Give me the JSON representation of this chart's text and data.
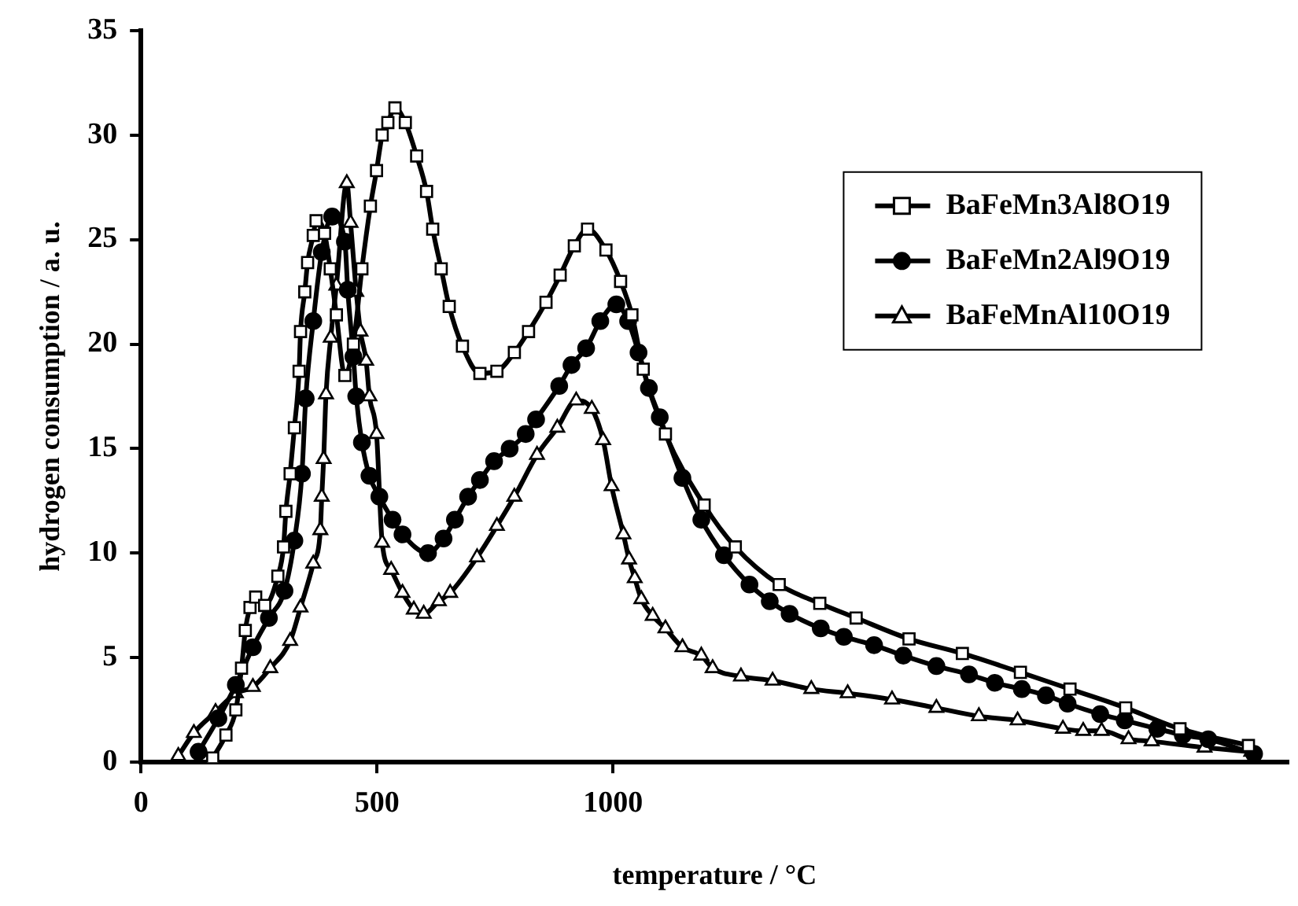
{
  "chart_data": {
    "type": "line",
    "xlabel": "temperature / °C",
    "ylabel": "hydrogen consumption / a. u.",
    "xlim": [
      0,
      2430
    ],
    "xticks": [
      0,
      500,
      1000
    ],
    "ylim": [
      0,
      35
    ],
    "yticks": [
      0,
      5,
      10,
      15,
      20,
      25,
      30,
      35
    ],
    "legend": "top right",
    "line_style": "solid",
    "series": [
      {
        "name": "BaFeMn3Al8O19",
        "color": "#000000",
        "marker": "square",
        "x": [
          152,
          180,
          201,
          213,
          221,
          231,
          243,
          262,
          290,
          302,
          307,
          316,
          325,
          335,
          338,
          347,
          353,
          365,
          371,
          389,
          401,
          414,
          432,
          450,
          468,
          486,
          499,
          511,
          523,
          538,
          560,
          584,
          605,
          618,
          636,
          653,
          681,
          718,
          754,
          791,
          821,
          858,
          888,
          918,
          946,
          985,
          1016,
          1040,
          1064,
          1111,
          1193,
          1259,
          1352,
          1438,
          1515,
          1627,
          1740,
          1863,
          1968,
          2086,
          2201,
          2346
        ],
        "values": [
          0.2,
          1.3,
          2.5,
          4.5,
          6.3,
          7.4,
          7.9,
          7.5,
          8.9,
          10.3,
          12,
          13.8,
          16,
          18.7,
          20.6,
          22.5,
          23.9,
          25.2,
          25.9,
          25.3,
          23.6,
          21.4,
          18.5,
          20,
          23.6,
          26.6,
          28.3,
          30,
          30.6,
          31.3,
          30.6,
          29,
          27.3,
          25.5,
          23.6,
          21.8,
          19.9,
          18.6,
          18.7,
          19.6,
          20.6,
          22,
          23.3,
          24.7,
          25.5,
          24.5,
          23,
          21.4,
          18.8,
          15.7,
          12.3,
          10.3,
          8.5,
          7.6,
          6.9,
          5.9,
          5.2,
          4.3,
          3.5,
          2.6,
          1.6,
          0.8
        ]
      },
      {
        "name": "BaFeMn2Al9O19",
        "color": "#000000",
        "marker": "circle",
        "x": [
          122,
          164,
          201,
          237,
          271,
          304,
          325,
          341,
          349,
          365,
          383,
          405,
          432,
          438,
          450,
          456,
          468,
          484,
          505,
          533,
          554,
          608,
          641,
          665,
          693,
          718,
          748,
          781,
          815,
          837,
          886,
          912,
          943,
          973,
          1007,
          1032,
          1054,
          1076,
          1099,
          1147,
          1187,
          1235,
          1289,
          1332,
          1374,
          1440,
          1489,
          1553,
          1615,
          1685,
          1754,
          1809,
          1866,
          1917,
          1963,
          2032,
          2084,
          2153,
          2207,
          2261,
          2358
        ],
        "values": [
          0.5,
          2.1,
          3.7,
          5.5,
          6.9,
          8.2,
          10.6,
          13.8,
          17.4,
          21.1,
          24.4,
          26.1,
          24.9,
          22.6,
          19.4,
          17.5,
          15.3,
          13.7,
          12.7,
          11.6,
          10.9,
          10,
          10.7,
          11.6,
          12.7,
          13.5,
          14.4,
          15,
          15.7,
          16.4,
          18,
          19,
          19.8,
          21.1,
          21.9,
          21.1,
          19.6,
          17.9,
          16.5,
          13.6,
          11.6,
          9.9,
          8.5,
          7.7,
          7.1,
          6.4,
          6,
          5.6,
          5.1,
          4.6,
          4.2,
          3.8,
          3.5,
          3.2,
          2.8,
          2.3,
          2,
          1.6,
          1.3,
          1.1,
          0.4
        ]
      },
      {
        "name": "BaFeMnAl10O19",
        "color": "#000000",
        "marker": "triangle",
        "x": [
          79,
          112,
          158,
          201,
          237,
          274,
          316,
          338,
          365,
          380,
          383,
          387,
          392,
          402,
          414,
          436,
          444,
          456,
          465,
          477,
          484,
          499,
          511,
          530,
          554,
          578,
          599,
          631,
          655,
          712,
          754,
          791,
          839,
          882,
          922,
          955,
          979,
          997,
          1022,
          1034,
          1046,
          1060,
          1084,
          1111,
          1147,
          1187,
          1211,
          1271,
          1338,
          1420,
          1497,
          1591,
          1685,
          1775,
          1857,
          1953,
          1996,
          2035,
          2092,
          2141,
          2253,
          2352
        ],
        "values": [
          0.3,
          1.4,
          2.4,
          3.3,
          3.6,
          4.5,
          5.8,
          7.4,
          9.5,
          11.1,
          12.7,
          14.5,
          17.6,
          20.3,
          22.8,
          27.7,
          25.8,
          22.5,
          20.6,
          19.2,
          17.5,
          15.7,
          10.5,
          9.2,
          8.1,
          7.3,
          7.1,
          7.7,
          8.1,
          9.8,
          11.3,
          12.7,
          14.7,
          16,
          17.3,
          16.9,
          15.4,
          13.2,
          10.9,
          9.7,
          8.8,
          7.8,
          7,
          6.4,
          5.5,
          5.1,
          4.5,
          4.1,
          3.9,
          3.5,
          3.3,
          3,
          2.6,
          2.2,
          2,
          1.6,
          1.5,
          1.5,
          1.1,
          1,
          0.7,
          0.5
        ]
      }
    ]
  }
}
